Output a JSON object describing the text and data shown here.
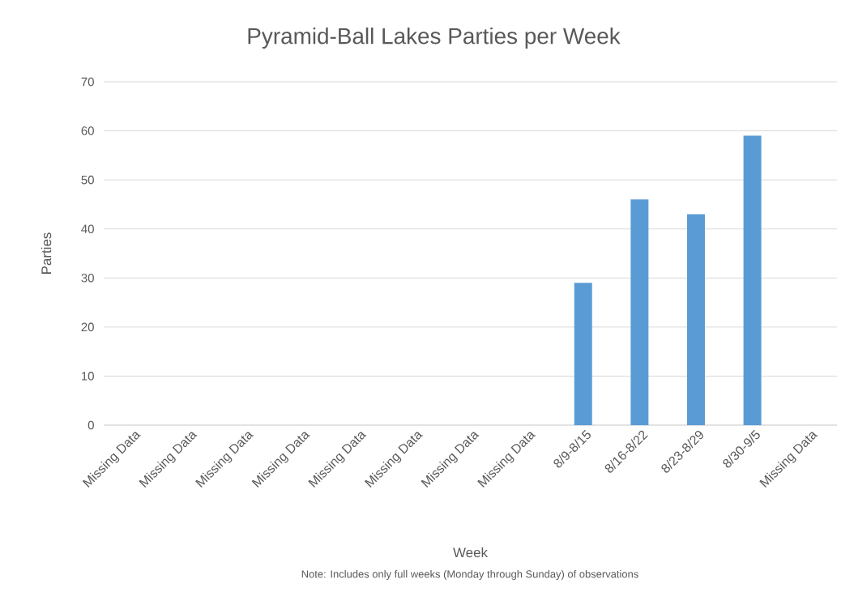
{
  "chart_data": {
    "type": "bar",
    "title": "Pyramid-Ball Lakes Parties per Week",
    "xlabel": "Week",
    "ylabel": "Parties",
    "annotations": [
      "Note: Includes only full weeks (Monday through Sunday) of observations"
    ],
    "categories": [
      "Missing Data",
      "Missing Data",
      "Missing Data",
      "Missing Data",
      "Missing Data",
      "Missing Data",
      "Missing Data",
      "Missing Data",
      "8/9-8/15",
      "8/16-8/22",
      "8/23-8/29",
      "8/30-9/5",
      "Missing Data"
    ],
    "values": [
      null,
      null,
      null,
      null,
      null,
      null,
      null,
      null,
      29,
      46,
      43,
      59,
      null
    ],
    "color": "#5b9bd5",
    "ylim": [
      0,
      70
    ],
    "yticks": [
      0,
      10,
      20,
      30,
      40,
      50,
      60,
      70
    ],
    "grid": "y"
  }
}
